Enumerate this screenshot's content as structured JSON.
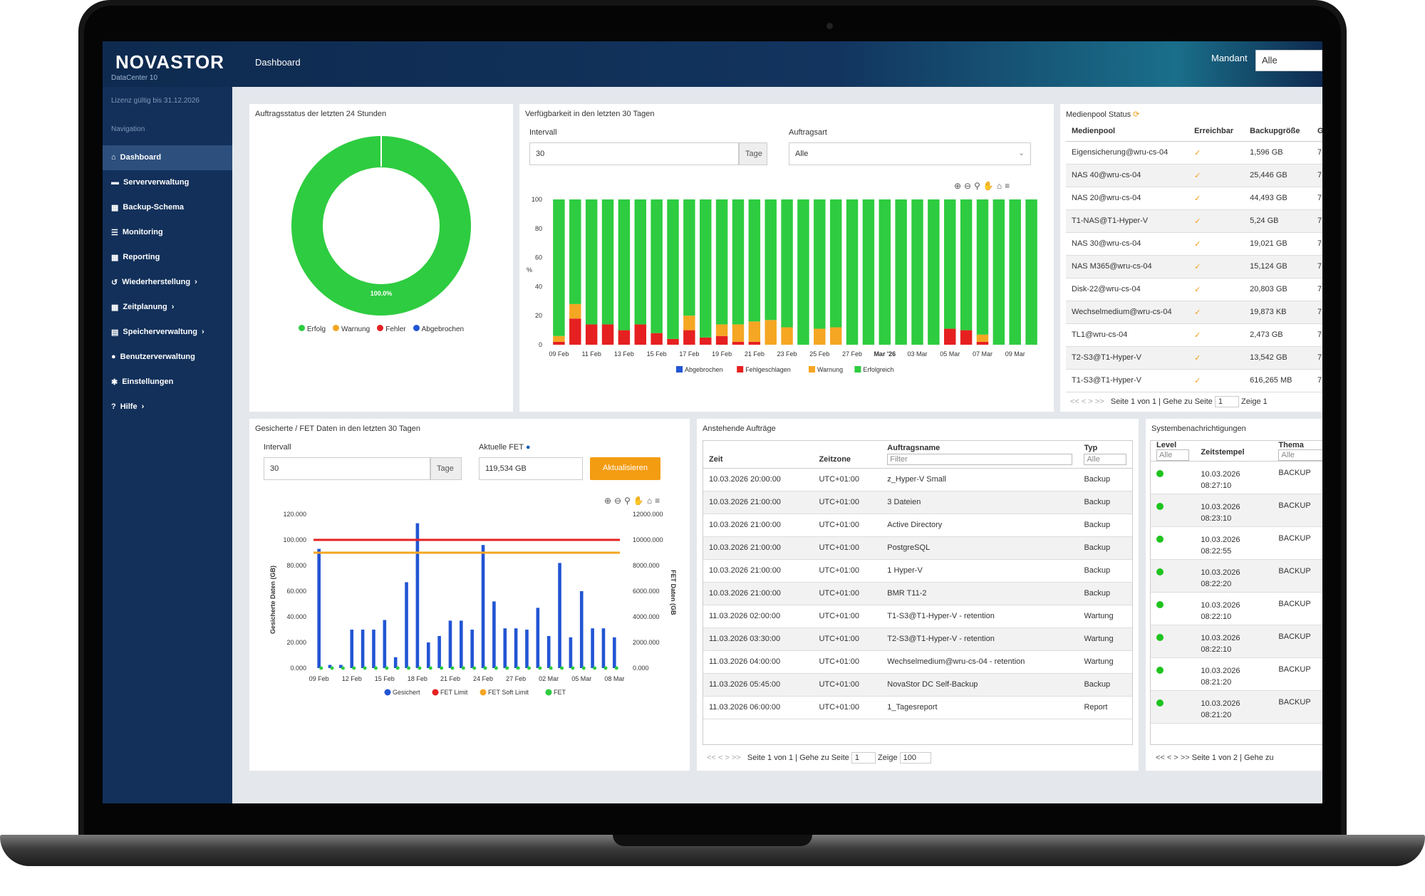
{
  "app": {
    "logo": "NOVASTOR",
    "product": "DataCenter 10",
    "license": "Lizenz gültig bis 31.12.2026",
    "nav_header": "Navigation",
    "breadcrumb": "Dashboard",
    "mandant_label": "Mandant",
    "mandant_value": "Alle"
  },
  "nav": [
    {
      "label": "Dashboard",
      "icon": "home-icon",
      "active": true
    },
    {
      "label": "Serververwaltung",
      "icon": "server-icon"
    },
    {
      "label": "Backup-Schema",
      "icon": "calendar-icon"
    },
    {
      "label": "Monitoring",
      "icon": "list-icon"
    },
    {
      "label": "Reporting",
      "icon": "calendar-icon"
    },
    {
      "label": "Wiederherstellung",
      "icon": "restore-icon",
      "arrow": "›"
    },
    {
      "label": "Zeitplanung",
      "icon": "calendar-icon",
      "arrow": "›"
    },
    {
      "label": "Speicherverwaltung",
      "icon": "storage-icon",
      "arrow": "›"
    },
    {
      "label": "Benutzerverwaltung",
      "icon": "user-icon"
    },
    {
      "label": "Einstellungen",
      "icon": "gear-icon"
    },
    {
      "label": "Hilfe",
      "icon": "question-icon",
      "arrow": "›"
    }
  ],
  "job_status": {
    "title": "Auftragsstatus der letzten 24 Stunden",
    "center_label": "100.0%",
    "legend": [
      {
        "label": "Erfolg",
        "color": "#2ecc40"
      },
      {
        "label": "Warnung",
        "color": "#f5a623"
      },
      {
        "label": "Fehler",
        "color": "#e62020"
      },
      {
        "label": "Abgebrochen",
        "color": "#2255d4"
      }
    ]
  },
  "availability": {
    "title": "Verfügbarkeit in den letzten 30 Tagen",
    "interval_label": "Intervall",
    "interval_value": "30",
    "interval_unit": "Tage",
    "jobtype_label": "Auftragsart",
    "jobtype_value": "Alle",
    "chart_data": {
      "type": "bar",
      "stacked": true,
      "ylabel": "%",
      "ylim": [
        0,
        100
      ],
      "yticks": [
        "100",
        "80",
        "60",
        "40",
        "20",
        "0"
      ],
      "xticks": [
        "09 Feb",
        "11 Feb",
        "13 Feb",
        "15 Feb",
        "17 Feb",
        "19 Feb",
        "21 Feb",
        "23 Feb",
        "25 Feb",
        "27 Feb",
        "Mar '26",
        "03 Mar",
        "05 Mar",
        "07 Mar",
        "09 Mar"
      ],
      "series": [
        {
          "name": "Abgebrochen",
          "color": "#2255d4",
          "values": [
            0,
            0,
            0,
            0,
            0,
            0,
            0,
            0,
            0,
            0,
            0,
            0,
            0,
            0,
            0,
            0,
            0,
            0,
            0,
            0,
            0,
            0,
            0,
            0,
            0,
            0,
            0,
            0,
            0,
            0
          ]
        },
        {
          "name": "Fehlgeschlagen",
          "color": "#e62020",
          "values": [
            2,
            18,
            14,
            14,
            10,
            14,
            8,
            4,
            10,
            5,
            6,
            2,
            2,
            0,
            0,
            0,
            0,
            0,
            0,
            0,
            0,
            0,
            0,
            0,
            11,
            10,
            2,
            0,
            0,
            0
          ]
        },
        {
          "name": "Warnung",
          "color": "#f5a623",
          "values": [
            4,
            10,
            0,
            0,
            0,
            0,
            0,
            0,
            10,
            0,
            8,
            12,
            14,
            17,
            12,
            0,
            11,
            12,
            0,
            0,
            0,
            0,
            0,
            0,
            0,
            0,
            5,
            0,
            0,
            0
          ]
        },
        {
          "name": "Erfolgreich",
          "color": "#2ecc40",
          "values": [
            94,
            72,
            86,
            86,
            90,
            86,
            92,
            96,
            80,
            95,
            86,
            86,
            84,
            83,
            88,
            100,
            89,
            88,
            100,
            100,
            100,
            100,
            100,
            100,
            89,
            90,
            93,
            100,
            100,
            100
          ]
        }
      ]
    }
  },
  "mediapool": {
    "title": "Medienpool Status",
    "columns": [
      "Medienpool",
      "Erreichbar",
      "Backupgröße",
      "G"
    ],
    "rows": [
      [
        "Eigensicherung@wru-cs-04",
        "✓",
        "1,596 GB",
        "7"
      ],
      [
        "NAS 40@wru-cs-04",
        "✓",
        "25,446 GB",
        "7"
      ],
      [
        "NAS 20@wru-cs-04",
        "✓",
        "44,493 GB",
        "7"
      ],
      [
        "T1-NAS@T1-Hyper-V",
        "✓",
        "5,24 GB",
        "7"
      ],
      [
        "NAS 30@wru-cs-04",
        "✓",
        "19,021 GB",
        "7"
      ],
      [
        "NAS M365@wru-cs-04",
        "✓",
        "15,124 GB",
        "7"
      ],
      [
        "Disk-22@wru-cs-04",
        "✓",
        "20,803 GB",
        "7"
      ],
      [
        "Wechselmedium@wru-cs-04",
        "✓",
        "19,873 KB",
        "7"
      ],
      [
        "TL1@wru-cs-04",
        "✓",
        "2,473 GB",
        "7"
      ],
      [
        "T2-S3@T1-Hyper-V",
        "✓",
        "13,542 GB",
        "7"
      ],
      [
        "T1-S3@T1-Hyper-V",
        "✓",
        "616,265 MB",
        "7"
      ]
    ],
    "pager": {
      "nav": "<<   <   >   >>",
      "page_text": "Seite 1 von 1 | Gehe zu Seite",
      "page_input": "1",
      "show_label": "Zeige",
      "show_value": "1"
    }
  },
  "saved_data": {
    "title": "Gesicherte / FET Daten in den letzten 30 Tagen",
    "interval_label": "Intervall",
    "interval_value": "30",
    "interval_unit": "Tage",
    "fet_label": "Aktuelle FET",
    "fet_value": "119,534 GB",
    "update_button": "Aktualisieren",
    "chart_data": {
      "type": "bar",
      "ylabel": "Gesicherte Daten (GB)",
      "y2label": "FET Daten (GB",
      "ylim": [
        0,
        120000
      ],
      "y2lim": [
        0,
        12000
      ],
      "yticks": [
        "120.000",
        "100.000",
        "80.000",
        "60.000",
        "40.000",
        "20.000",
        "0.000"
      ],
      "y2ticks": [
        "12000.000",
        "10000.000",
        "8000.000",
        "6000.000",
        "4000.000",
        "2000.000",
        "0.000"
      ],
      "xticks": [
        "09 Feb",
        "12 Feb",
        "15 Feb",
        "18 Feb",
        "21 Feb",
        "24 Feb",
        "27 Feb",
        "02 Mar",
        "05 Mar",
        "08 Mar"
      ],
      "series": [
        {
          "name": "Gesichert",
          "color": "#2255d4",
          "values": [
            93000,
            2500,
            2500,
            30000,
            30000,
            30000,
            37500,
            8500,
            67000,
            113000,
            20000,
            25000,
            37000,
            37000,
            30000,
            96000,
            52000,
            31000,
            31000,
            30000,
            47000,
            25000,
            82000,
            24000,
            60000,
            31000,
            31000,
            24000
          ]
        },
        {
          "name": "FET Limit",
          "color": "#e62020",
          "value": 100000
        },
        {
          "name": "FET Soft Limit",
          "color": "#f5a623",
          "value": 90000
        },
        {
          "name": "FET",
          "color": "#2ecc40",
          "value": 0
        }
      ]
    }
  },
  "pending_jobs": {
    "title": "Anstehende Aufträge",
    "columns": [
      "Zeit",
      "Zeitzone",
      "Auftragsname",
      "Typ"
    ],
    "filter_placeholder": "Filter",
    "type_filter": "Alle",
    "rows": [
      [
        "10.03.2026 20:00:00",
        "UTC+01:00",
        "z_Hyper-V Small",
        "Backup"
      ],
      [
        "10.03.2026 21:00:00",
        "UTC+01:00",
        "3 Dateien",
        "Backup"
      ],
      [
        "10.03.2026 21:00:00",
        "UTC+01:00",
        "Active Directory",
        "Backup"
      ],
      [
        "10.03.2026 21:00:00",
        "UTC+01:00",
        "PostgreSQL",
        "Backup"
      ],
      [
        "10.03.2026 21:00:00",
        "UTC+01:00",
        "1 Hyper-V",
        "Backup"
      ],
      [
        "10.03.2026 21:00:00",
        "UTC+01:00",
        "BMR T11-2",
        "Backup"
      ],
      [
        "11.03.2026 02:00:00",
        "UTC+01:00",
        "T1-S3@T1-Hyper-V - retention",
        "Wartung"
      ],
      [
        "11.03.2026 03:30:00",
        "UTC+01:00",
        "T2-S3@T1-Hyper-V - retention",
        "Wartung"
      ],
      [
        "11.03.2026 04:00:00",
        "UTC+01:00",
        "Wechselmedium@wru-cs-04 - retention",
        "Wartung"
      ],
      [
        "11.03.2026 05:45:00",
        "UTC+01:00",
        "NovaStor DC Self-Backup",
        "Backup"
      ],
      [
        "11.03.2026 06:00:00",
        "UTC+01:00",
        "1_Tagesreport",
        "Report"
      ]
    ],
    "pager": {
      "nav": "<<   <   >   >>",
      "page_text": "Seite 1 von 1 | Gehe zu Seite",
      "page_input": "1",
      "show_label": "Zeige",
      "show_value": "100"
    }
  },
  "notifications": {
    "title": "Systembenachrichtigungen",
    "columns": [
      "Level",
      "Zeitstempel",
      "Thema"
    ],
    "level_filter": "Alle",
    "topic_filter": "Alle",
    "rows": [
      [
        "10.03.2026",
        "08:27:10",
        "BACKUP"
      ],
      [
        "10.03.2026",
        "08:23:10",
        "BACKUP"
      ],
      [
        "10.03.2026",
        "08:22:55",
        "BACKUP"
      ],
      [
        "10.03.2026",
        "08:22:20",
        "BACKUP"
      ],
      [
        "10.03.2026",
        "08:22:10",
        "BACKUP"
      ],
      [
        "10.03.2026",
        "08:22:10",
        "BACKUP"
      ],
      [
        "10.03.2026",
        "08:21:20",
        "BACKUP"
      ],
      [
        "10.03.2026",
        "08:21:20",
        "BACKUP"
      ]
    ],
    "pager": {
      "nav": "<<   <   >   >>",
      "page_text": "Seite 1 von 2 | Gehe zu"
    }
  }
}
